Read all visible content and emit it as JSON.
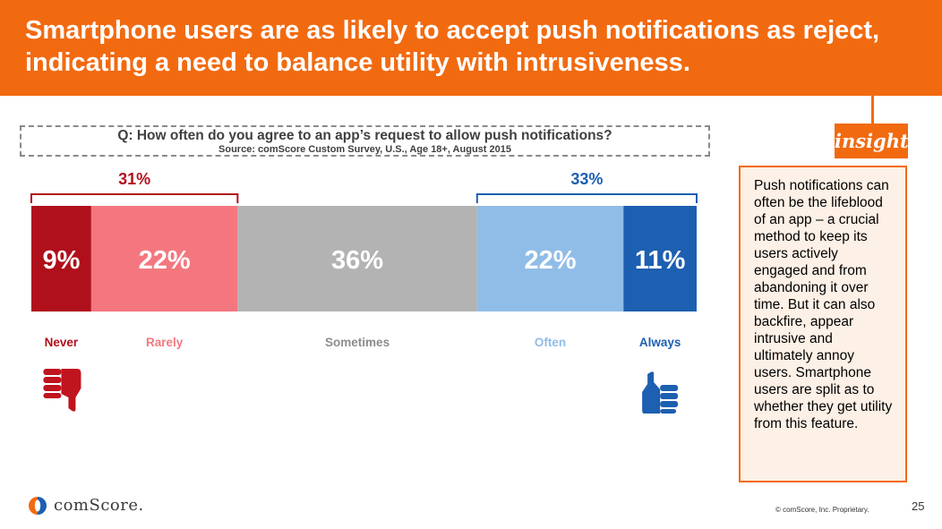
{
  "header": {
    "title": "Smartphone users are as likely to accept push notifications as reject, indicating a need to balance utility with intrusiveness."
  },
  "survey": {
    "question": "Q: How often do you agree to an app’s request to allow push notifications?",
    "source": "Source: comScore Custom Survey, U.S., Age 18+, August 2015"
  },
  "insight": {
    "tag": "insight",
    "text": "Push notifications can often be the lifeblood of an app – a crucial method to keep its users actively engaged and from abandoning it over time. But it can also backfire, appear intrusive and ultimately annoy users. Smartphone users are split as to whether they get utility from this feature."
  },
  "chart_data": {
    "type": "bar",
    "orientation": "horizontal-stacked",
    "title": "Q: How often do you agree to an app’s request to allow push notifications?",
    "categories": [
      "Never",
      "Rarely",
      "Sometimes",
      "Often",
      "Always"
    ],
    "values": [
      9,
      22,
      36,
      22,
      11
    ],
    "value_labels": [
      "9%",
      "22%",
      "36%",
      "22%",
      "11%"
    ],
    "colors": [
      "#b0101b",
      "#f4777f",
      "#b3b3b3",
      "#90bde8",
      "#1d5fb1"
    ],
    "label_colors": [
      "#b0101b",
      "#f4777f",
      "#8c8c8c",
      "#90bde8",
      "#1d5fb1"
    ],
    "groups": [
      {
        "label": "31%",
        "from": 0,
        "to": 1,
        "color": "#b0101b"
      },
      {
        "label": "33%",
        "from": 3,
        "to": 4,
        "color": "#1d5fb1"
      }
    ],
    "icons": [
      "thumbs-down-icon",
      "thumbs-up-icon"
    ]
  },
  "footer": {
    "logo_text": "comScore.",
    "copyright": "© comScore, Inc. Proprietary.",
    "page_number": "25"
  }
}
